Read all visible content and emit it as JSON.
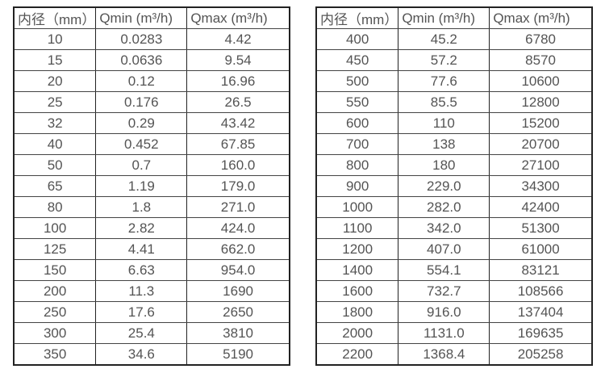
{
  "page": {
    "background": "#ffffff",
    "text_color": "#545454",
    "border_color": "#222222"
  },
  "tables": [
    {
      "name": "flow-table-small-diameters",
      "headers": [
        "内径（mm）",
        "Qmin (m³/h)",
        "Qmax (m³/h)"
      ],
      "rows": [
        [
          "10",
          "0.0283",
          "4.42"
        ],
        [
          "15",
          "0.0636",
          "9.54"
        ],
        [
          "20",
          "0.12",
          "16.96"
        ],
        [
          "25",
          "0.176",
          "26.5"
        ],
        [
          "32",
          "0.29",
          "43.42"
        ],
        [
          "40",
          "0.452",
          "67.85"
        ],
        [
          "50",
          "0.7",
          "160.0"
        ],
        [
          "65",
          "1.19",
          "179.0"
        ],
        [
          "80",
          "1.8",
          "271.0"
        ],
        [
          "100",
          "2.82",
          "424.0"
        ],
        [
          "125",
          "4.41",
          "662.0"
        ],
        [
          "150",
          "6.63",
          "954.0"
        ],
        [
          "200",
          "11.3",
          "1690"
        ],
        [
          "250",
          "17.6",
          "2650"
        ],
        [
          "300",
          "25.4",
          "3810"
        ],
        [
          "350",
          "34.6",
          "5190"
        ]
      ]
    },
    {
      "name": "flow-table-large-diameters",
      "headers": [
        "内径（mm）",
        "Qmin (m³/h)",
        "Qmax (m³/h)"
      ],
      "rows": [
        [
          "400",
          "45.2",
          "6780"
        ],
        [
          "450",
          "57.2",
          "8570"
        ],
        [
          "500",
          "77.6",
          "10600"
        ],
        [
          "550",
          "85.5",
          "12800"
        ],
        [
          "600",
          "110",
          "15200"
        ],
        [
          "700",
          "138",
          "20700"
        ],
        [
          "800",
          "180",
          "27100"
        ],
        [
          "900",
          "229.0",
          "34300"
        ],
        [
          "1000",
          "282.0",
          "42400"
        ],
        [
          "1100",
          "342.0",
          "51300"
        ],
        [
          "1200",
          "407.0",
          "61000"
        ],
        [
          "1400",
          "554.1",
          "83121"
        ],
        [
          "1600",
          "732.7",
          "108566"
        ],
        [
          "1800",
          "916.0",
          "137404"
        ],
        [
          "2000",
          "1131.0",
          "169635"
        ],
        [
          "2200",
          "1368.4",
          "205258"
        ]
      ]
    }
  ]
}
